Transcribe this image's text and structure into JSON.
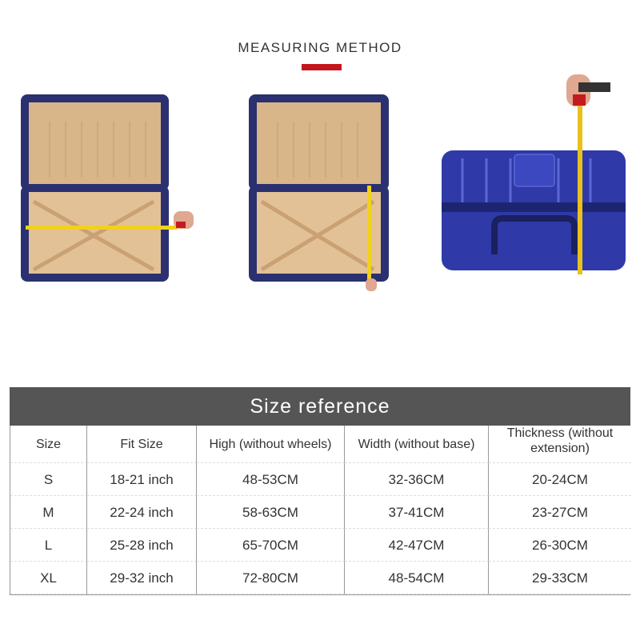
{
  "heading": {
    "title": "MEASURING METHOD",
    "accent_color": "#c4161c"
  },
  "images": [
    {
      "label": "open suitcase measured by width",
      "icon": "suitcase-width-measure-image"
    },
    {
      "label": "open suitcase measured by height",
      "icon": "suitcase-height-measure-image"
    },
    {
      "label": "closed suitcase measured by thickness",
      "icon": "suitcase-thickness-measure-image"
    }
  ],
  "table": {
    "title": "Size reference",
    "header_color": "#555555",
    "columns": [
      "Size",
      "Fit Size",
      "High (without wheels)",
      "Width (without base)",
      "Thickness (without extension)"
    ],
    "rows": [
      [
        "S",
        "18-21 inch",
        "48-53CM",
        "32-36CM",
        "20-24CM"
      ],
      [
        "M",
        "22-24 inch",
        "58-63CM",
        "37-41CM",
        "23-27CM"
      ],
      [
        "L",
        "25-28 inch",
        "65-70CM",
        "42-47CM",
        "26-30CM"
      ],
      [
        "XL",
        "29-32 inch",
        "72-80CM",
        "48-54CM",
        "29-33CM"
      ]
    ]
  }
}
